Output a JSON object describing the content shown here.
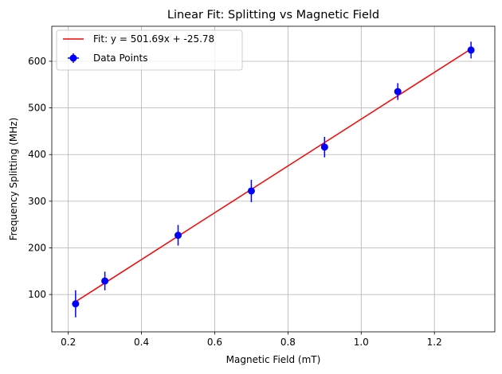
{
  "chart_data": {
    "type": "scatter",
    "title": "Linear Fit: Splitting vs Magnetic Field",
    "xlabel": "Magnetic Field (mT)",
    "ylabel": "Frequency Splitting (MHz)",
    "xlim": [
      0.155,
      1.365
    ],
    "ylim": [
      20,
      675
    ],
    "xticks": [
      0.2,
      0.4,
      0.6,
      0.8,
      1.0,
      1.2
    ],
    "xtick_labels": [
      "0.2",
      "0.4",
      "0.6",
      "0.8",
      "1.0",
      "1.2"
    ],
    "yticks": [
      100,
      200,
      300,
      400,
      500,
      600
    ],
    "ytick_labels": [
      "100",
      "200",
      "300",
      "400",
      "500",
      "600"
    ],
    "grid": true,
    "legend_position": "top-left",
    "series": [
      {
        "name": "Data Points",
        "kind": "errorbar",
        "color": "#0000ff",
        "x": [
          0.22,
          0.3,
          0.5,
          0.7,
          0.9,
          1.1,
          1.3
        ],
        "y": [
          80,
          129,
          227,
          322,
          416,
          535,
          624
        ],
        "yerr": [
          29,
          20,
          22,
          24,
          22,
          18,
          18
        ]
      },
      {
        "name": "Fit: y = 501.69x + -25.78",
        "kind": "line",
        "color": "#ff0000",
        "slope": 501.69,
        "intercept": -25.78,
        "x_range": [
          0.22,
          1.3
        ]
      }
    ]
  }
}
